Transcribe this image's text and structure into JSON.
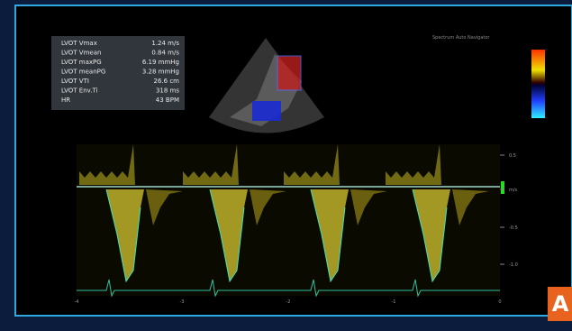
{
  "measurements": {
    "rows": [
      [
        "LVOT Vmax",
        "1.24 m/s"
      ],
      [
        "LVOT Vmean",
        "0.84 m/s"
      ],
      [
        "LVOT maxPG",
        "6.19 mmHg"
      ],
      [
        "LVOT meanPG",
        "3.28 mmHg"
      ],
      [
        "LVOT VTI",
        "26.6 cm"
      ],
      [
        "LVOT Env.Ti",
        "318 ms"
      ],
      [
        "HR",
        "43 BPM"
      ]
    ]
  },
  "header": {
    "label": "Spectrum Auto Navigator"
  },
  "scale": {
    "labels": [
      "0.5",
      "m/s",
      "-0.5",
      "-1.0"
    ]
  },
  "time_axis": {
    "labels": [
      "-4",
      "-3",
      "-2",
      "-1",
      "0"
    ]
  },
  "panel_label": "A"
}
